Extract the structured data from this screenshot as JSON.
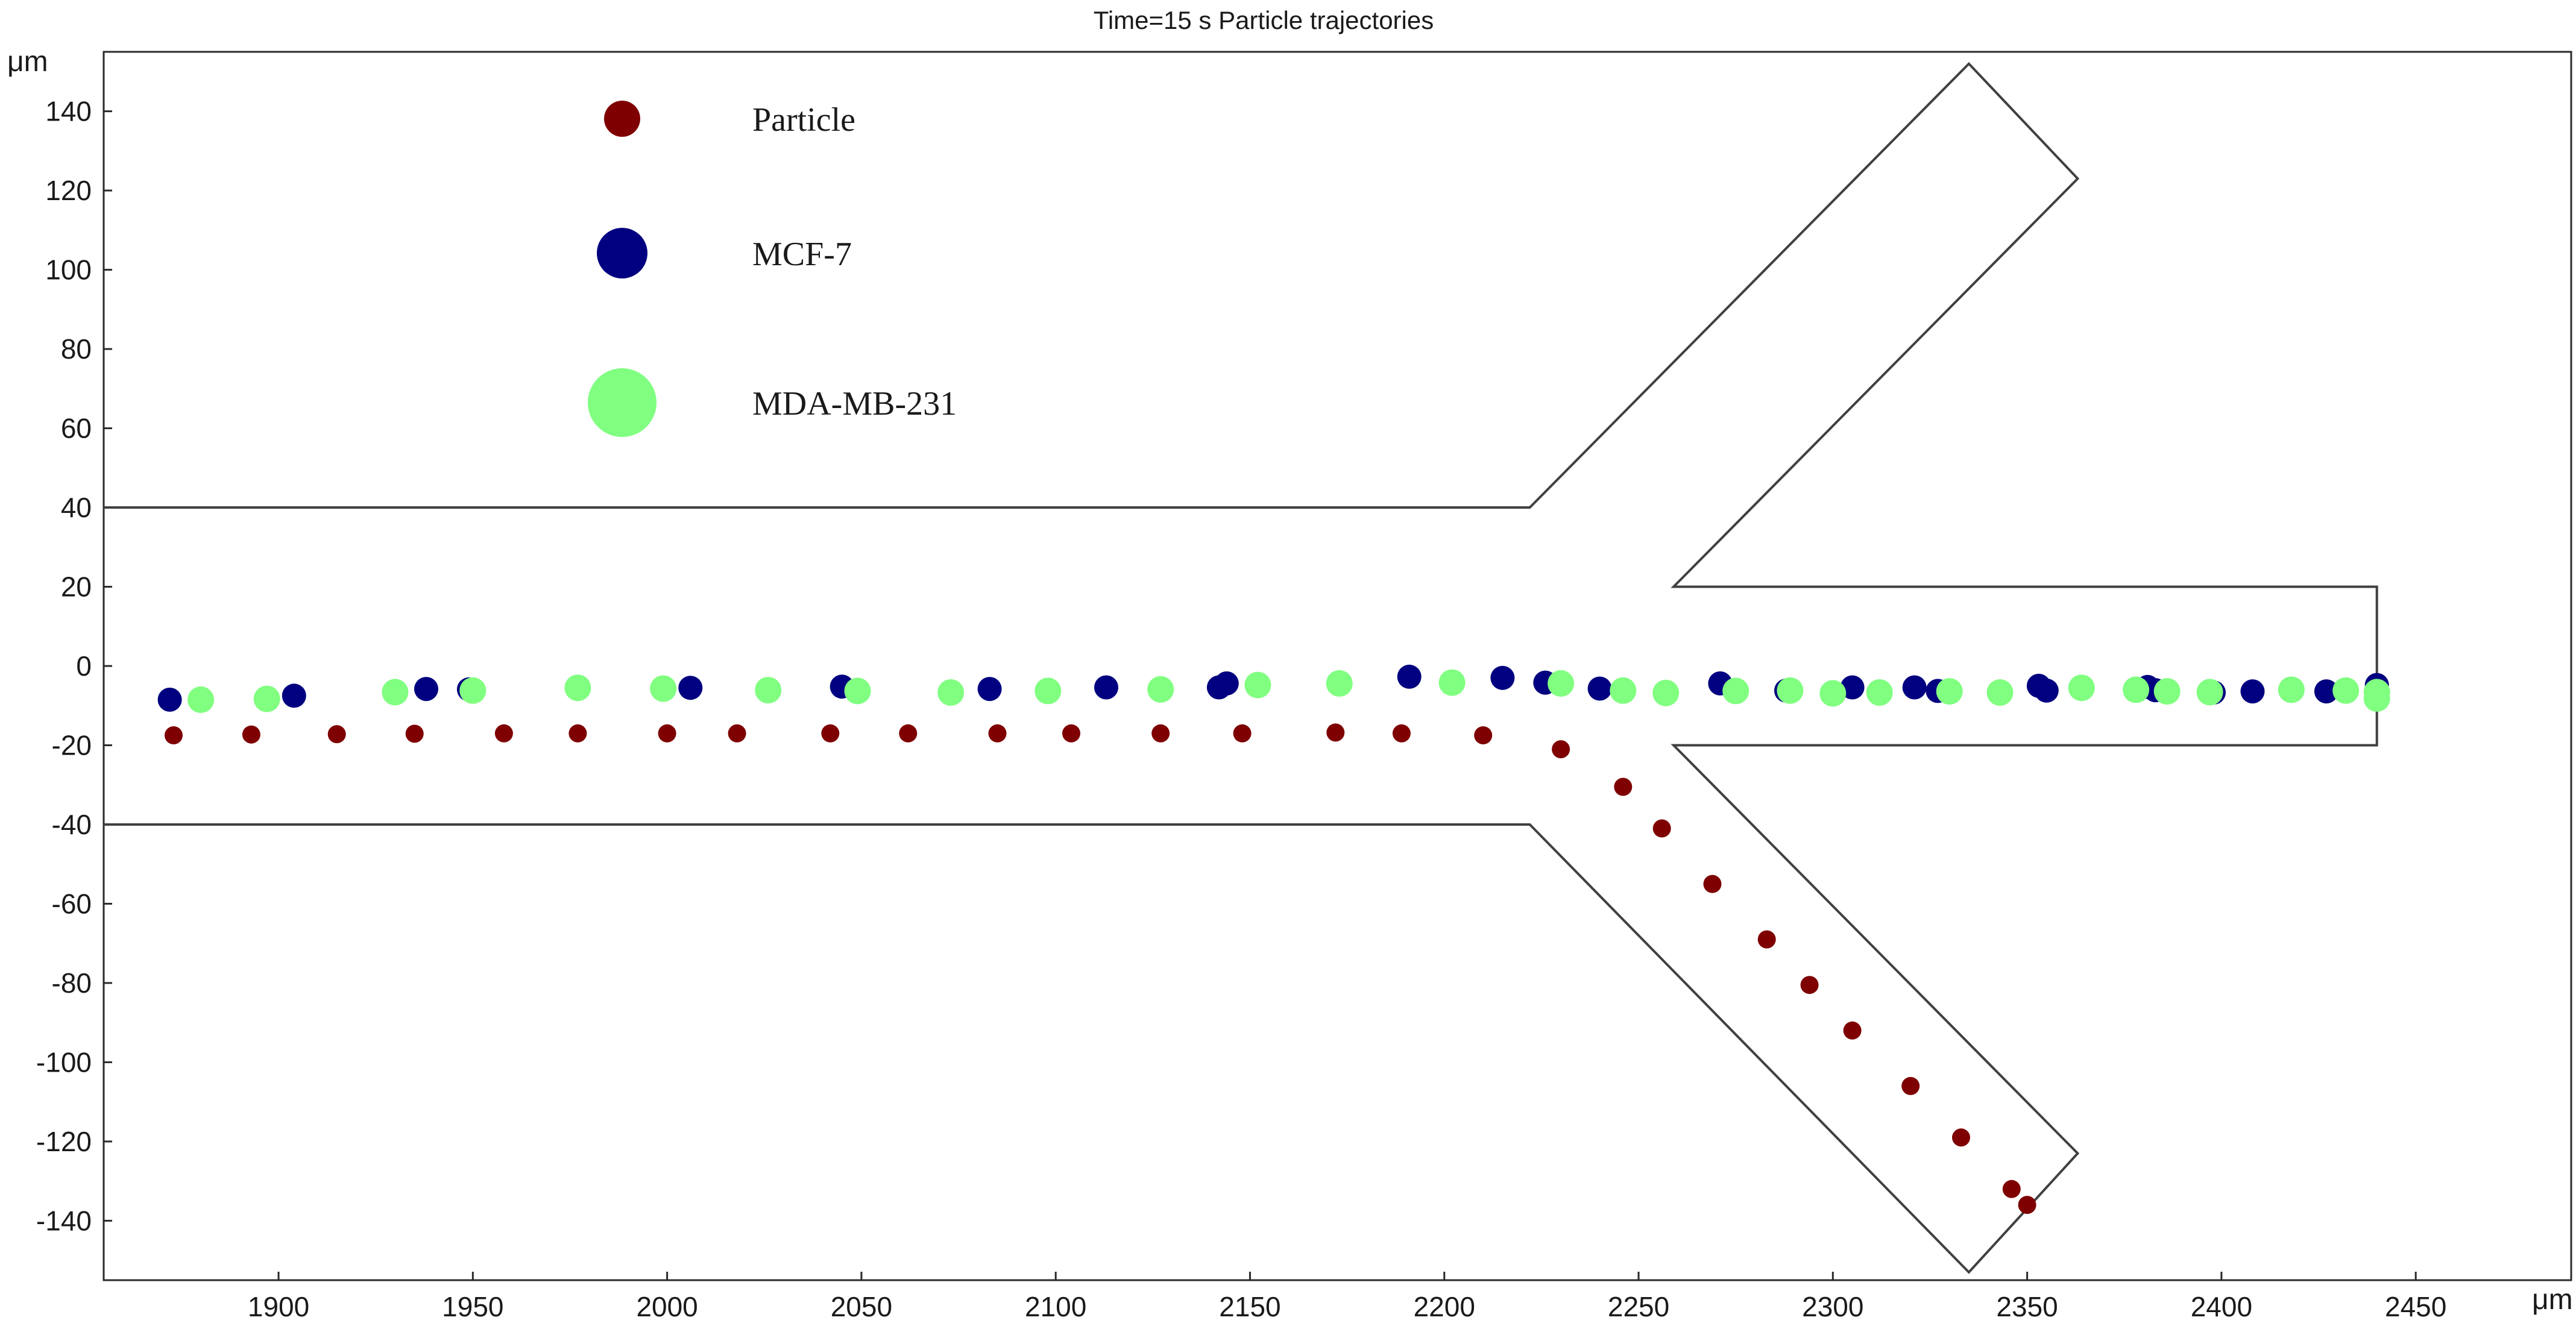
{
  "chart_data": {
    "type": "scatter",
    "title": "Time=15 s  Particle trajectories",
    "xlabel": "μm",
    "ylabel": "μm",
    "xlim": [
      1855,
      2490
    ],
    "ylim": [
      -155,
      155
    ],
    "x_ticks": [
      1900,
      1950,
      2000,
      2050,
      2100,
      2150,
      2200,
      2250,
      2300,
      2350,
      2400,
      2450
    ],
    "y_ticks": [
      140,
      120,
      100,
      80,
      60,
      40,
      20,
      0,
      -20,
      -40,
      -60,
      -80,
      -100,
      -120,
      -140
    ],
    "grid": false,
    "legend_position": "top-left",
    "geometry": {
      "description_color": "#404040",
      "upper_outline": [
        [
          1855,
          40
        ],
        [
          2222,
          40
        ],
        [
          2335,
          152
        ],
        [
          2363,
          123
        ],
        [
          2259,
          20
        ],
        [
          2440,
          20
        ],
        [
          2440,
          -20
        ],
        [
          2259,
          -20
        ],
        [
          2363,
          -123
        ],
        [
          2335,
          -153
        ],
        [
          2222,
          -40
        ],
        [
          1855,
          -40
        ]
      ]
    },
    "series": [
      {
        "name": "Particle",
        "color": "#7f0000",
        "marker_size": "small",
        "points": [
          [
            1873,
            -17.5
          ],
          [
            1893,
            -17.3
          ],
          [
            1915,
            -17.2
          ],
          [
            1935,
            -17.1
          ],
          [
            1958,
            -17
          ],
          [
            1977,
            -17
          ],
          [
            2000,
            -17
          ],
          [
            2018,
            -17
          ],
          [
            2042,
            -17
          ],
          [
            2062,
            -17
          ],
          [
            2085,
            -17
          ],
          [
            2104,
            -17
          ],
          [
            2127,
            -17
          ],
          [
            2148,
            -17
          ],
          [
            2172,
            -16.8
          ],
          [
            2189,
            -17
          ],
          [
            2210,
            -17.5
          ],
          [
            2230,
            -21
          ],
          [
            2246,
            -30.5
          ],
          [
            2256,
            -41
          ],
          [
            2269,
            -55
          ],
          [
            2283,
            -69
          ],
          [
            2294,
            -80.5
          ],
          [
            2305,
            -92
          ],
          [
            2320,
            -106
          ],
          [
            2333,
            -119
          ],
          [
            2346,
            -132
          ],
          [
            2350,
            -136
          ]
        ]
      },
      {
        "name": "MCF-7",
        "color": "#000080",
        "marker_size": "medium",
        "points": [
          [
            1872,
            -8.5
          ],
          [
            1904,
            -7.5
          ],
          [
            1938,
            -5.8
          ],
          [
            1949,
            -5.9
          ],
          [
            1977,
            -5.4
          ],
          [
            2006,
            -5.5
          ],
          [
            2045,
            -5.2
          ],
          [
            2083,
            -5.8
          ],
          [
            2113,
            -5.4
          ],
          [
            2142,
            -5.4
          ],
          [
            2144,
            -4.4
          ],
          [
            2191,
            -2.7
          ],
          [
            2215,
            -3
          ],
          [
            2226,
            -4.2
          ],
          [
            2240,
            -5.7
          ],
          [
            2271,
            -4.4
          ],
          [
            2288,
            -6.2
          ],
          [
            2305,
            -5.4
          ],
          [
            2321,
            -5.4
          ],
          [
            2327,
            -6.3
          ],
          [
            2353,
            -5
          ],
          [
            2355,
            -6.2
          ],
          [
            2381,
            -5.3
          ],
          [
            2383,
            -6.1
          ],
          [
            2398,
            -6.7
          ],
          [
            2408,
            -6.4
          ],
          [
            2427,
            -6.4
          ],
          [
            2440,
            -4.8
          ]
        ]
      },
      {
        "name": "MDA-MB-231",
        "color": "#80ff80",
        "marker_size": "large",
        "points": [
          [
            1880,
            -8.5
          ],
          [
            1897,
            -8.3
          ],
          [
            1930,
            -6.6
          ],
          [
            1950,
            -6.2
          ],
          [
            1977,
            -5.5
          ],
          [
            1999,
            -5.7
          ],
          [
            2026,
            -6.1
          ],
          [
            2049,
            -6.3
          ],
          [
            2073,
            -6.7
          ],
          [
            2098,
            -6.3
          ],
          [
            2127,
            -5.9
          ],
          [
            2152,
            -4.8
          ],
          [
            2173,
            -4.4
          ],
          [
            2202,
            -4.2
          ],
          [
            2230,
            -4.4
          ],
          [
            2246,
            -6.2
          ],
          [
            2257,
            -6.8
          ],
          [
            2275,
            -6.3
          ],
          [
            2289,
            -6.2
          ],
          [
            2300,
            -6.9
          ],
          [
            2312,
            -6.7
          ],
          [
            2330,
            -6.4
          ],
          [
            2343,
            -6.7
          ],
          [
            2364,
            -5.5
          ],
          [
            2378,
            -6
          ],
          [
            2386,
            -6.4
          ],
          [
            2397,
            -6.6
          ],
          [
            2418,
            -6
          ],
          [
            2432,
            -6.2
          ],
          [
            2440,
            -6.6
          ],
          [
            2440,
            -8.2
          ]
        ]
      }
    ]
  }
}
